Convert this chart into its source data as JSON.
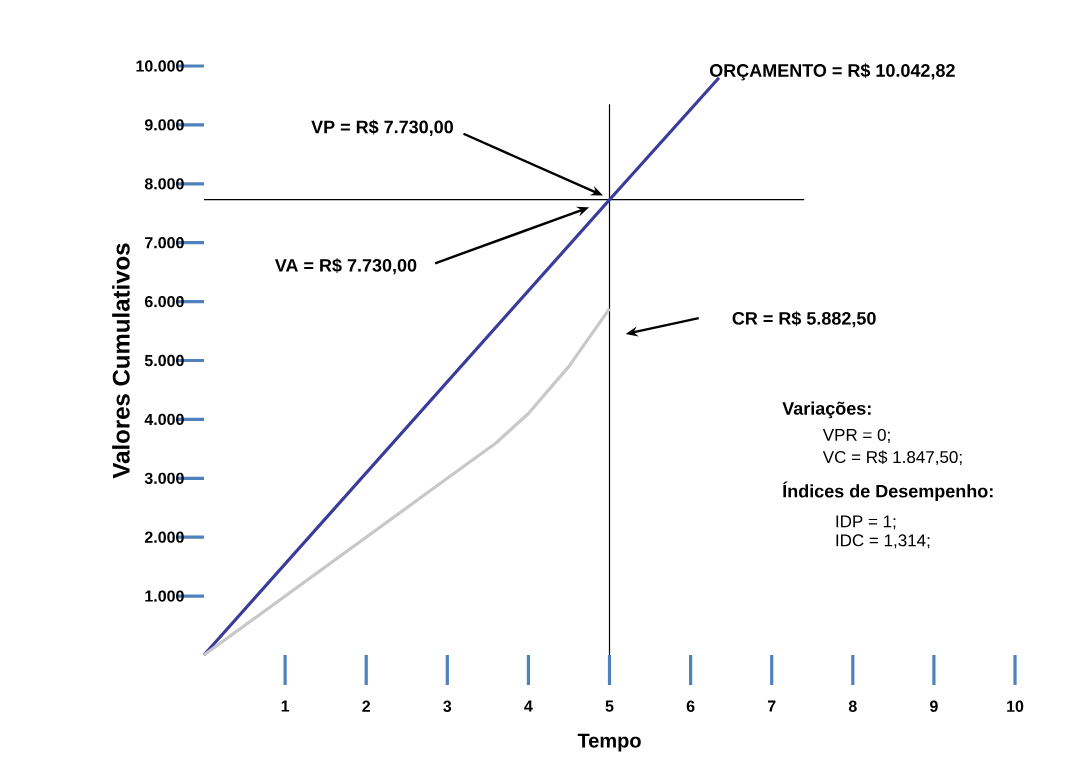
{
  "chart_data": {
    "type": "line",
    "xlabel": "Tempo",
    "ylabel": "Valores Cumulativos",
    "x": [
      0,
      5,
      6.35
    ],
    "series": [
      {
        "color": "#3a3c9c",
        "values": [
          0,
          7730,
          9800
        ]
      },
      {
        "color": "#c8c8c8",
        "x": [
          0,
          1,
          2,
          3,
          3.6,
          4,
          4.5,
          5
        ],
        "values": [
          0,
          1000,
          2000,
          3000,
          3600,
          4100,
          4900,
          5880
        ]
      }
    ],
    "xlim": [
      0,
      10
    ],
    "ylim": [
      0,
      10000
    ],
    "xticks": [
      1,
      2,
      3,
      4,
      5,
      6,
      7,
      8,
      9,
      10
    ],
    "yticks": [
      {
        "value": 1000,
        "label": "1.000"
      },
      {
        "value": 2000,
        "label": "2.000"
      },
      {
        "value": 3000,
        "label": "3.000"
      },
      {
        "value": 4000,
        "label": "4.000"
      },
      {
        "value": 5000,
        "label": "5.000"
      },
      {
        "value": 6000,
        "label": "6.000"
      },
      {
        "value": 7000,
        "label": "7.000"
      },
      {
        "value": 8000,
        "label": "8.000"
      },
      {
        "value": 9000,
        "label": "9.000"
      },
      {
        "value": 10000,
        "label": "10.000"
      }
    ],
    "ref_lines": [
      {
        "axis": "x",
        "value": 5,
        "color": "#000000"
      },
      {
        "axis": "y",
        "value": 7730,
        "color": "#000000"
      }
    ],
    "annotations": [
      "ORÇAMENTO = R$ 10.042,82",
      "VP = R$ 7.730,00",
      "VA = R$ 7.730,00",
      "CR = R$ 5.882,50",
      "Variações:",
      "VPR = 0;",
      "VC = R$ 1.847,50;",
      "Índices de Desempenho:",
      "IDP = 1;",
      "IDC = 1,314;"
    ]
  }
}
